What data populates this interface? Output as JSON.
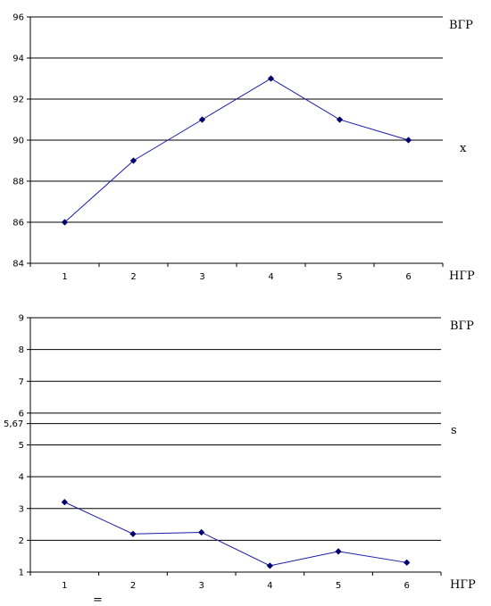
{
  "chart_data": [
    {
      "type": "line",
      "title": "",
      "categories": [
        "1",
        "2",
        "3",
        "4",
        "5",
        "6"
      ],
      "values": [
        86,
        89,
        91,
        93,
        91,
        90
      ],
      "ylim": [
        84,
        96
      ],
      "yticks": [
        "84",
        "86",
        "88",
        "90",
        "92",
        "94",
        "96"
      ],
      "grid": true,
      "label_top_right": "ВГР",
      "label_mid_right": "x",
      "label_bottom_right": "НГР",
      "line_color": "#1a1aaa",
      "marker_color": "#00006e"
    },
    {
      "type": "line",
      "title": "",
      "categories": [
        "1",
        "2",
        "3",
        "4",
        "5",
        "6"
      ],
      "values": [
        3.2,
        2.2,
        2.25,
        1.2,
        1.65,
        1.3
      ],
      "ylim": [
        1,
        9
      ],
      "yticks": [
        "1",
        "2",
        "3",
        "4",
        "5",
        "6",
        "7",
        "8",
        "9"
      ],
      "extra_line": {
        "value": 5.67,
        "label": "5,67"
      },
      "grid": true,
      "label_top_right": "ВГР",
      "label_mid_right": "s",
      "label_bottom_right": "НГР",
      "line_color": "#1a1aaa",
      "marker_color": "#00006e"
    }
  ],
  "footnote": "="
}
